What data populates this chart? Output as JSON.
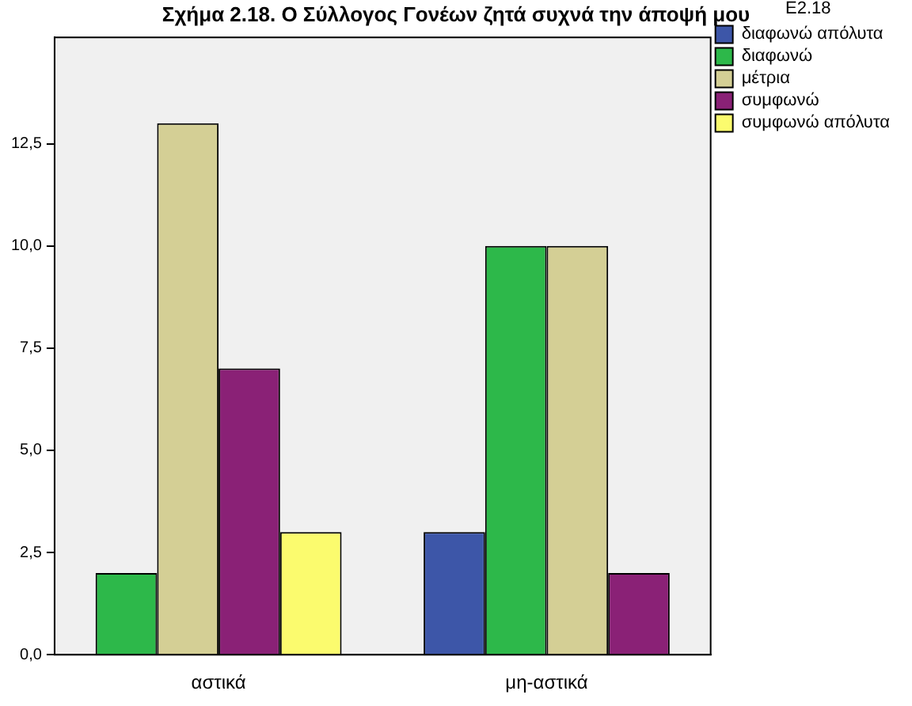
{
  "chart_data": {
    "type": "bar",
    "title": "Σχήμα 2.18. Ο Σύλλογος Γονέων ζητά συχνά την άποψή μου",
    "legend_title": "E2.18",
    "categories": [
      "αστικά",
      "μη-αστικά"
    ],
    "series": [
      {
        "name": "διαφωνώ απόλυτα",
        "color": "#3d56a8",
        "values": [
          null,
          3
        ]
      },
      {
        "name": "διαφωνώ",
        "color": "#2db84a",
        "values": [
          2,
          10
        ]
      },
      {
        "name": "μέτρια",
        "color": "#d4cf95",
        "values": [
          13,
          10
        ]
      },
      {
        "name": "συμφωνώ",
        "color": "#8a2176",
        "values": [
          7,
          2
        ]
      },
      {
        "name": "συμφωνώ απόλυτα",
        "color": "#fbfb6e",
        "values": [
          3,
          null
        ]
      }
    ],
    "ylim": [
      0,
      15.1
    ],
    "yticks": [
      {
        "value": 0,
        "label": "0,0"
      },
      {
        "value": 2.5,
        "label": "2,5"
      },
      {
        "value": 5,
        "label": "5,0"
      },
      {
        "value": 7.5,
        "label": "7,5"
      },
      {
        "value": 10,
        "label": "10,0"
      },
      {
        "value": 12.5,
        "label": "12,5"
      }
    ],
    "grid": false,
    "legend": "top right"
  }
}
